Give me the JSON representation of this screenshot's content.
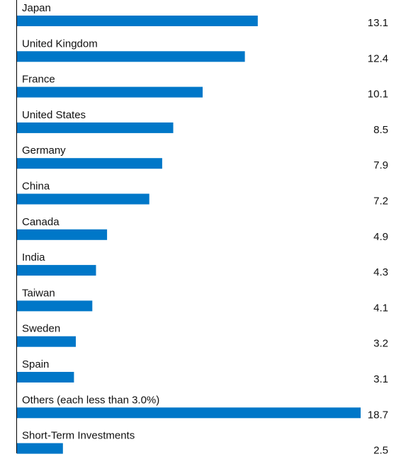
{
  "chart_data": {
    "type": "bar",
    "orientation": "horizontal",
    "categories": [
      "Japan",
      "United Kingdom",
      "France",
      "United States",
      "Germany",
      "China",
      "Canada",
      "India",
      "Taiwan",
      "Sweden",
      "Spain",
      "Others (each less than 3.0%)",
      "Short-Term Investments"
    ],
    "values": [
      13.1,
      12.4,
      10.1,
      8.5,
      7.9,
      7.2,
      4.9,
      4.3,
      4.1,
      3.2,
      3.1,
      18.7,
      2.5
    ],
    "value_labels": [
      "13.1",
      "12.4",
      "10.1",
      "8.5",
      "7.9",
      "7.2",
      "4.9",
      "4.3",
      "4.1",
      "3.2",
      "3.1",
      "18.7",
      "2.5"
    ],
    "xlim": [
      0,
      18.7
    ],
    "grid": false,
    "legend": "none",
    "bar_color": "#0077c8",
    "axis_color": "#000000"
  }
}
